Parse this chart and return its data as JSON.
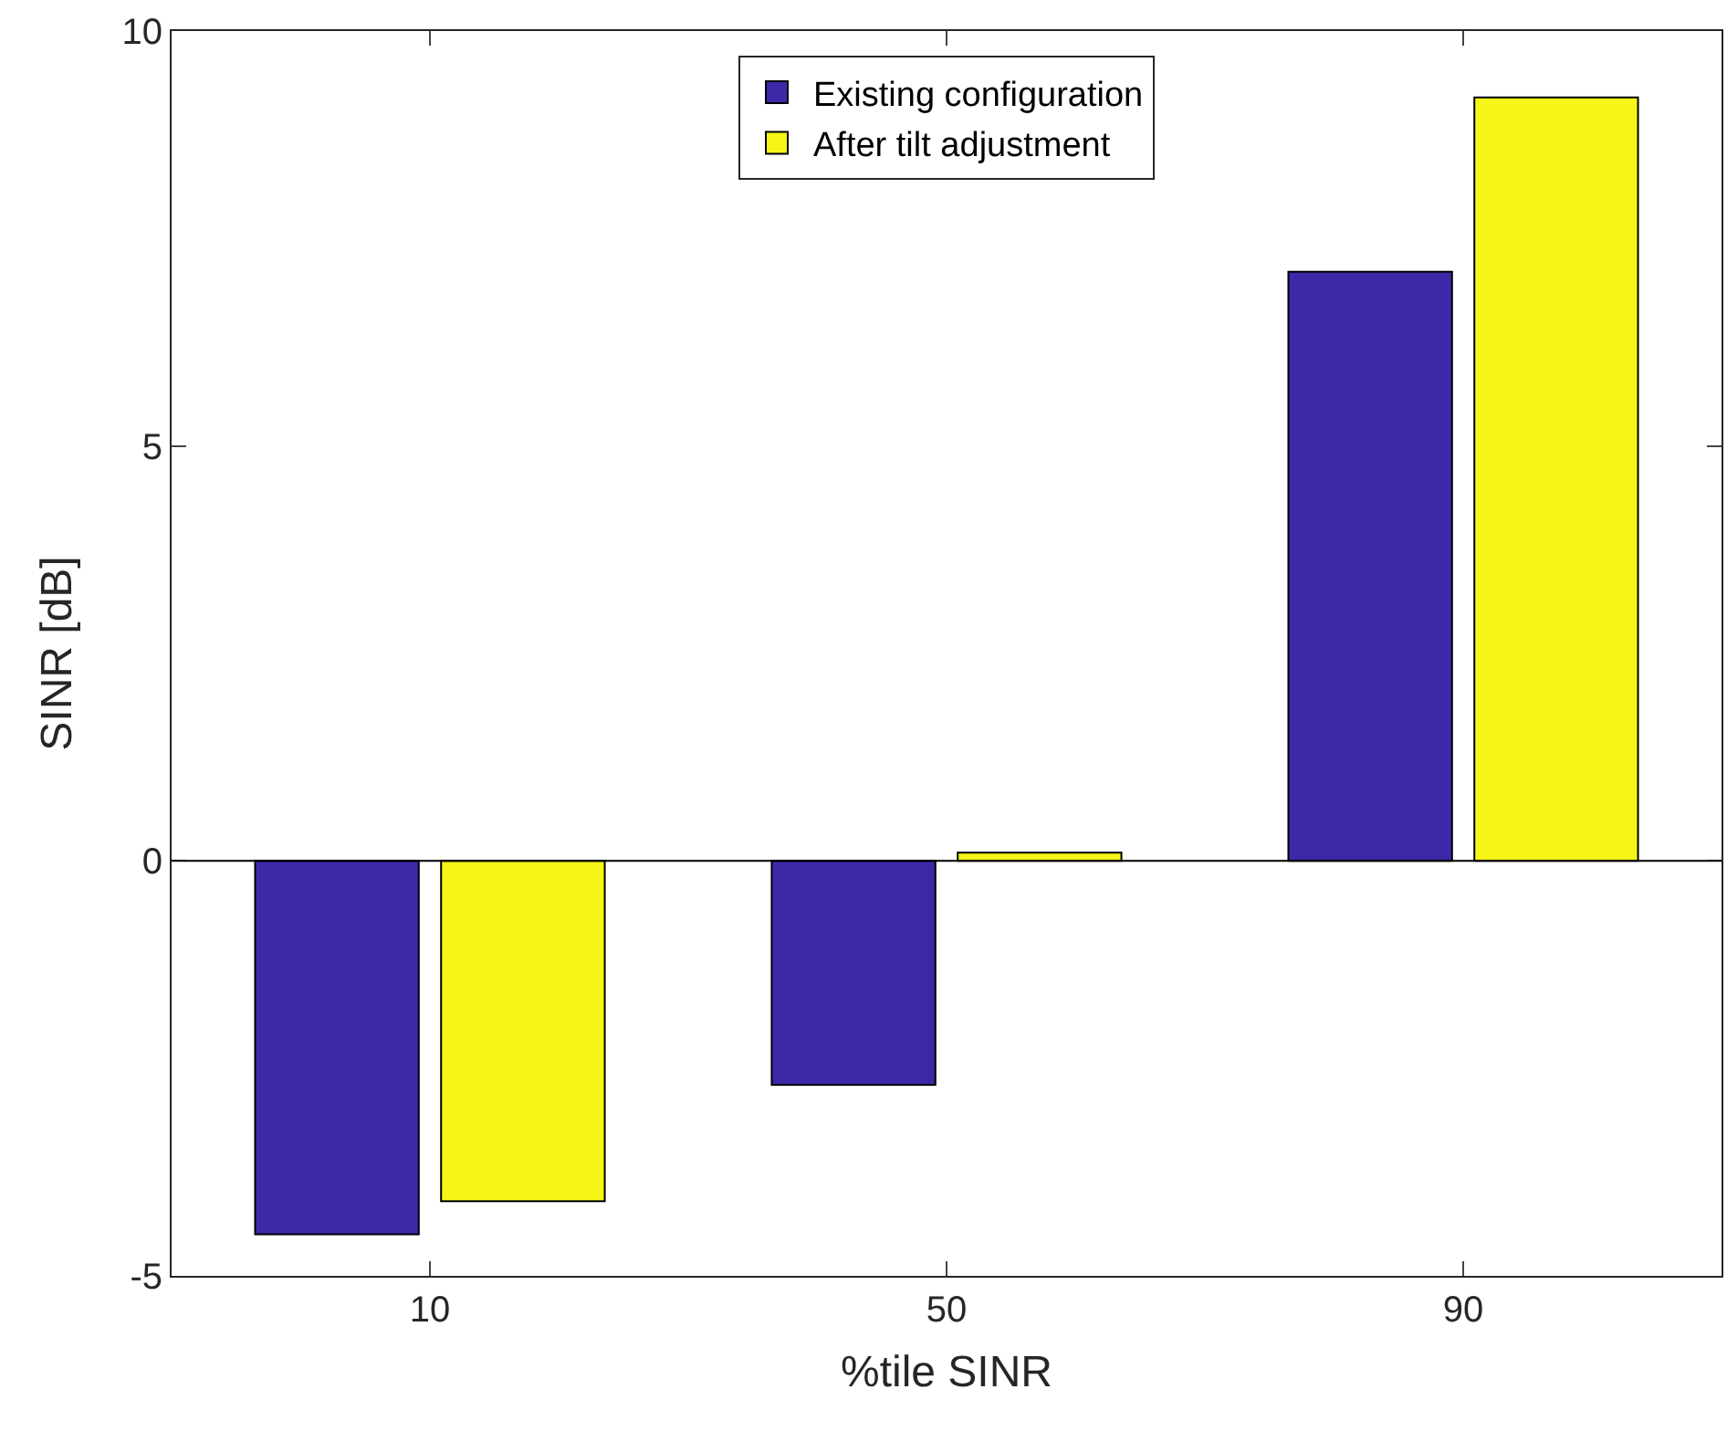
{
  "chart_data": {
    "type": "bar",
    "xlabel": "%tile SINR",
    "ylabel": "SINR [dB]",
    "categories": [
      "10",
      "50",
      "90"
    ],
    "series": [
      {
        "name": "Existing configuration",
        "color": "#3c29a8",
        "values": [
          -4.5,
          -2.7,
          7.1
        ]
      },
      {
        "name": "After tilt adjustment",
        "color": "#f5f518",
        "values": [
          -4.1,
          0.1,
          9.2
        ]
      }
    ],
    "ylim": [
      -5,
      10
    ],
    "yticks": [
      -5,
      0,
      5,
      10
    ],
    "grid": false,
    "ref_lines": [
      {
        "axis": "y",
        "value": 0,
        "color": "#000000"
      }
    ],
    "legend": "top center"
  }
}
